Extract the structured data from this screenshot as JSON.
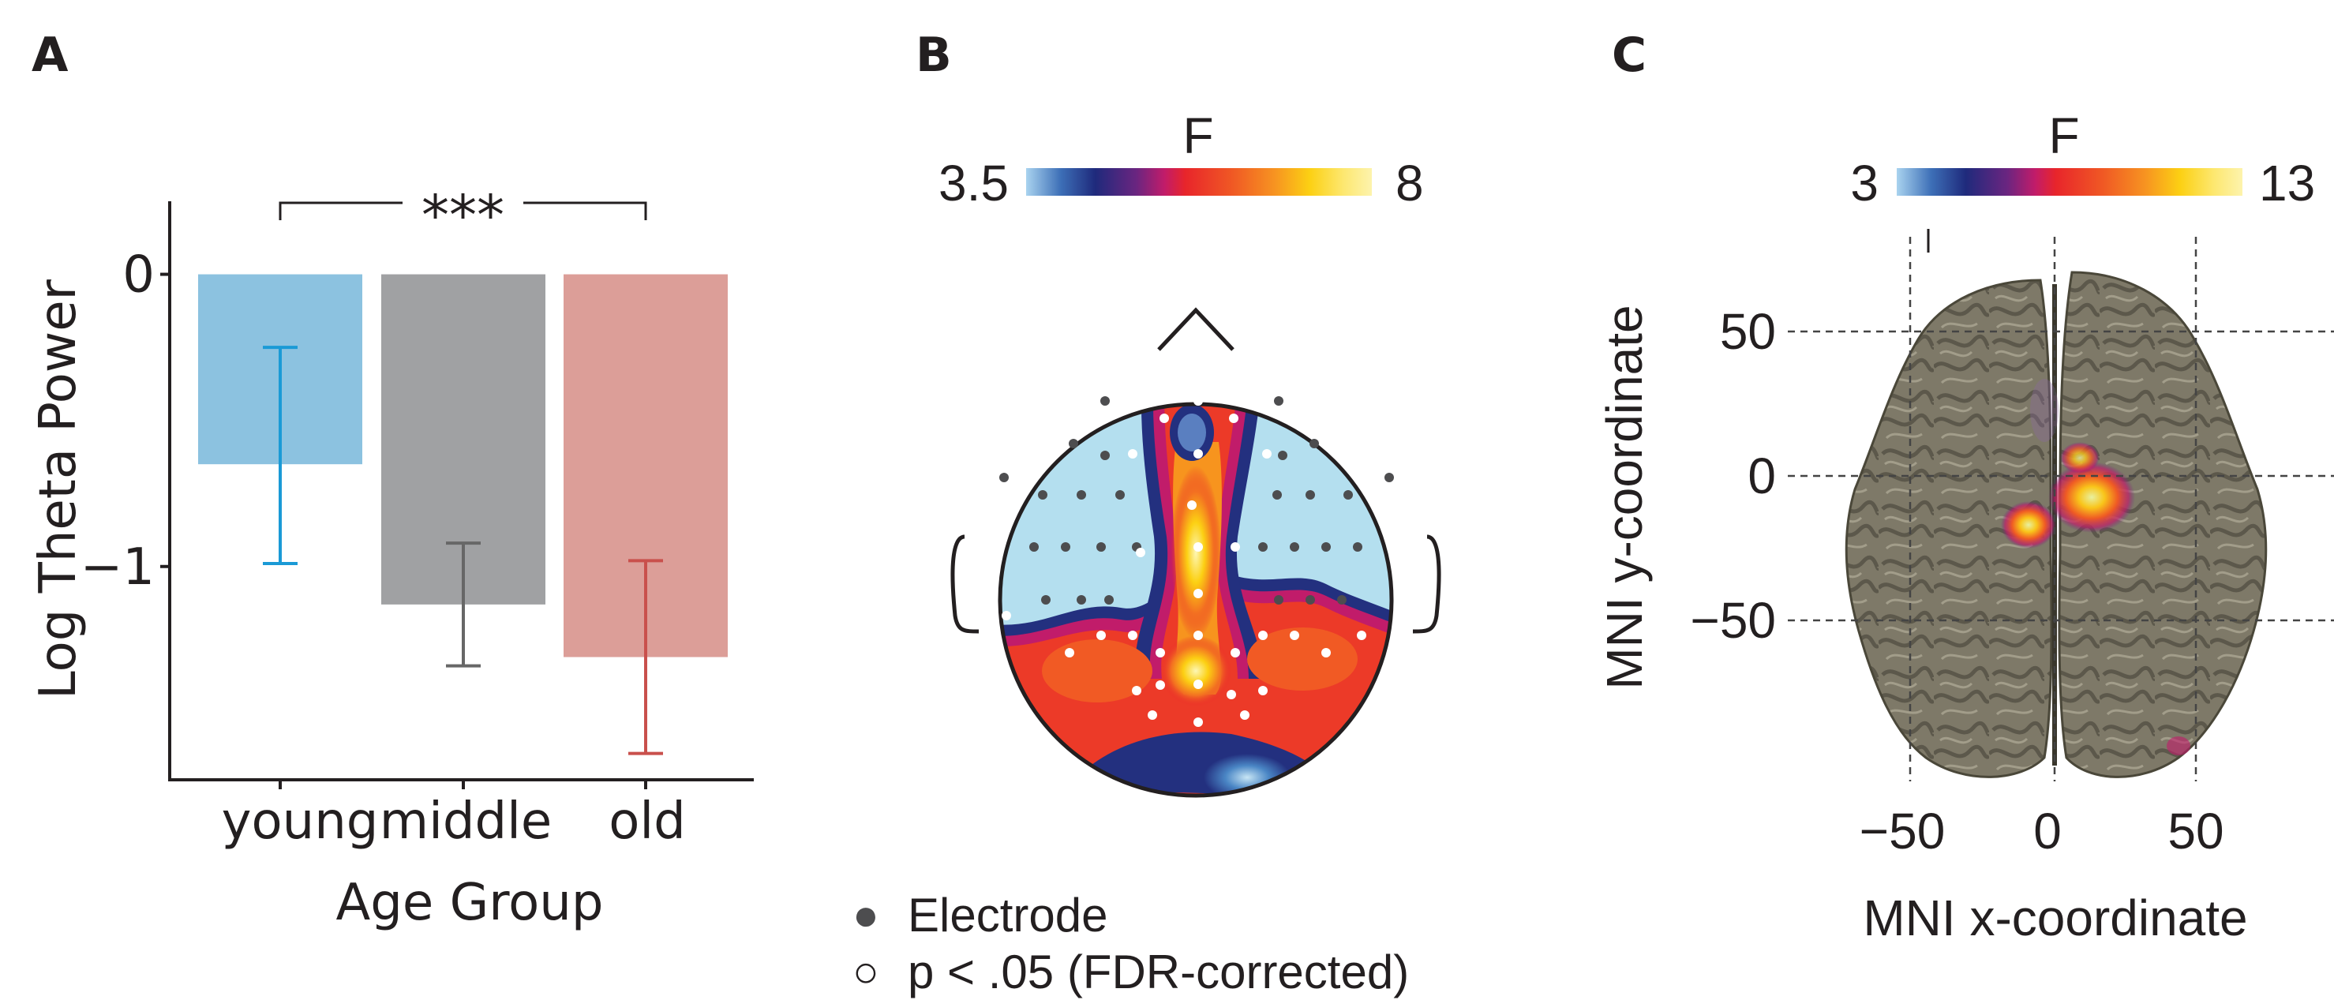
{
  "panels": {
    "a_label": "A",
    "b_label": "B",
    "c_label": "C"
  },
  "chart_data": [
    {
      "type": "bar",
      "panel": "A",
      "categories": [
        "young",
        "middle",
        "old"
      ],
      "values": [
        -0.65,
        -1.13,
        -1.31
      ],
      "error_low": [
        -0.99,
        -1.34,
        -1.64
      ],
      "error_high": [
        -0.25,
        -0.92,
        -0.98
      ],
      "colors": [
        "#8cc2e0",
        "#a0a1a3",
        "#dc9e98"
      ],
      "error_colors": [
        "#1a9ad6",
        "#676767",
        "#c9504c"
      ],
      "xlabel": "Age Group",
      "ylabel": "Log Theta Power",
      "ylim": [
        -1.73,
        0.25
      ],
      "yticks": [
        0,
        -1
      ],
      "ytick_labels": [
        "0",
        "−1"
      ],
      "significance": {
        "from": "young",
        "to": "old",
        "label": "***"
      },
      "grid": false
    },
    {
      "type": "heatmap",
      "panel": "B",
      "title": "F",
      "colorbar": {
        "min_label": "3.5",
        "max_label": "8"
      },
      "legend": {
        "electrode": "Electrode",
        "significant": "p < .05 (FDR-corrected)"
      },
      "legend_symbols": {
        "electrode": "●",
        "significant": "○"
      },
      "colors": {
        "background": "#b4dfef",
        "electrode": "#4d4d4f",
        "significant": "#ffffff"
      }
    },
    {
      "type": "heatmap",
      "panel": "C",
      "title": "F",
      "colorbar": {
        "min_label": "3",
        "max_label": "13"
      },
      "xlabel": "MNI x-coordinate",
      "ylabel": "MNI y-coordinate",
      "xticks": [
        "−50",
        "0",
        "50"
      ],
      "yticks": [
        "50",
        "0",
        "−50"
      ],
      "grid": true,
      "colors": {
        "cortex": "#7b7665"
      }
    }
  ]
}
